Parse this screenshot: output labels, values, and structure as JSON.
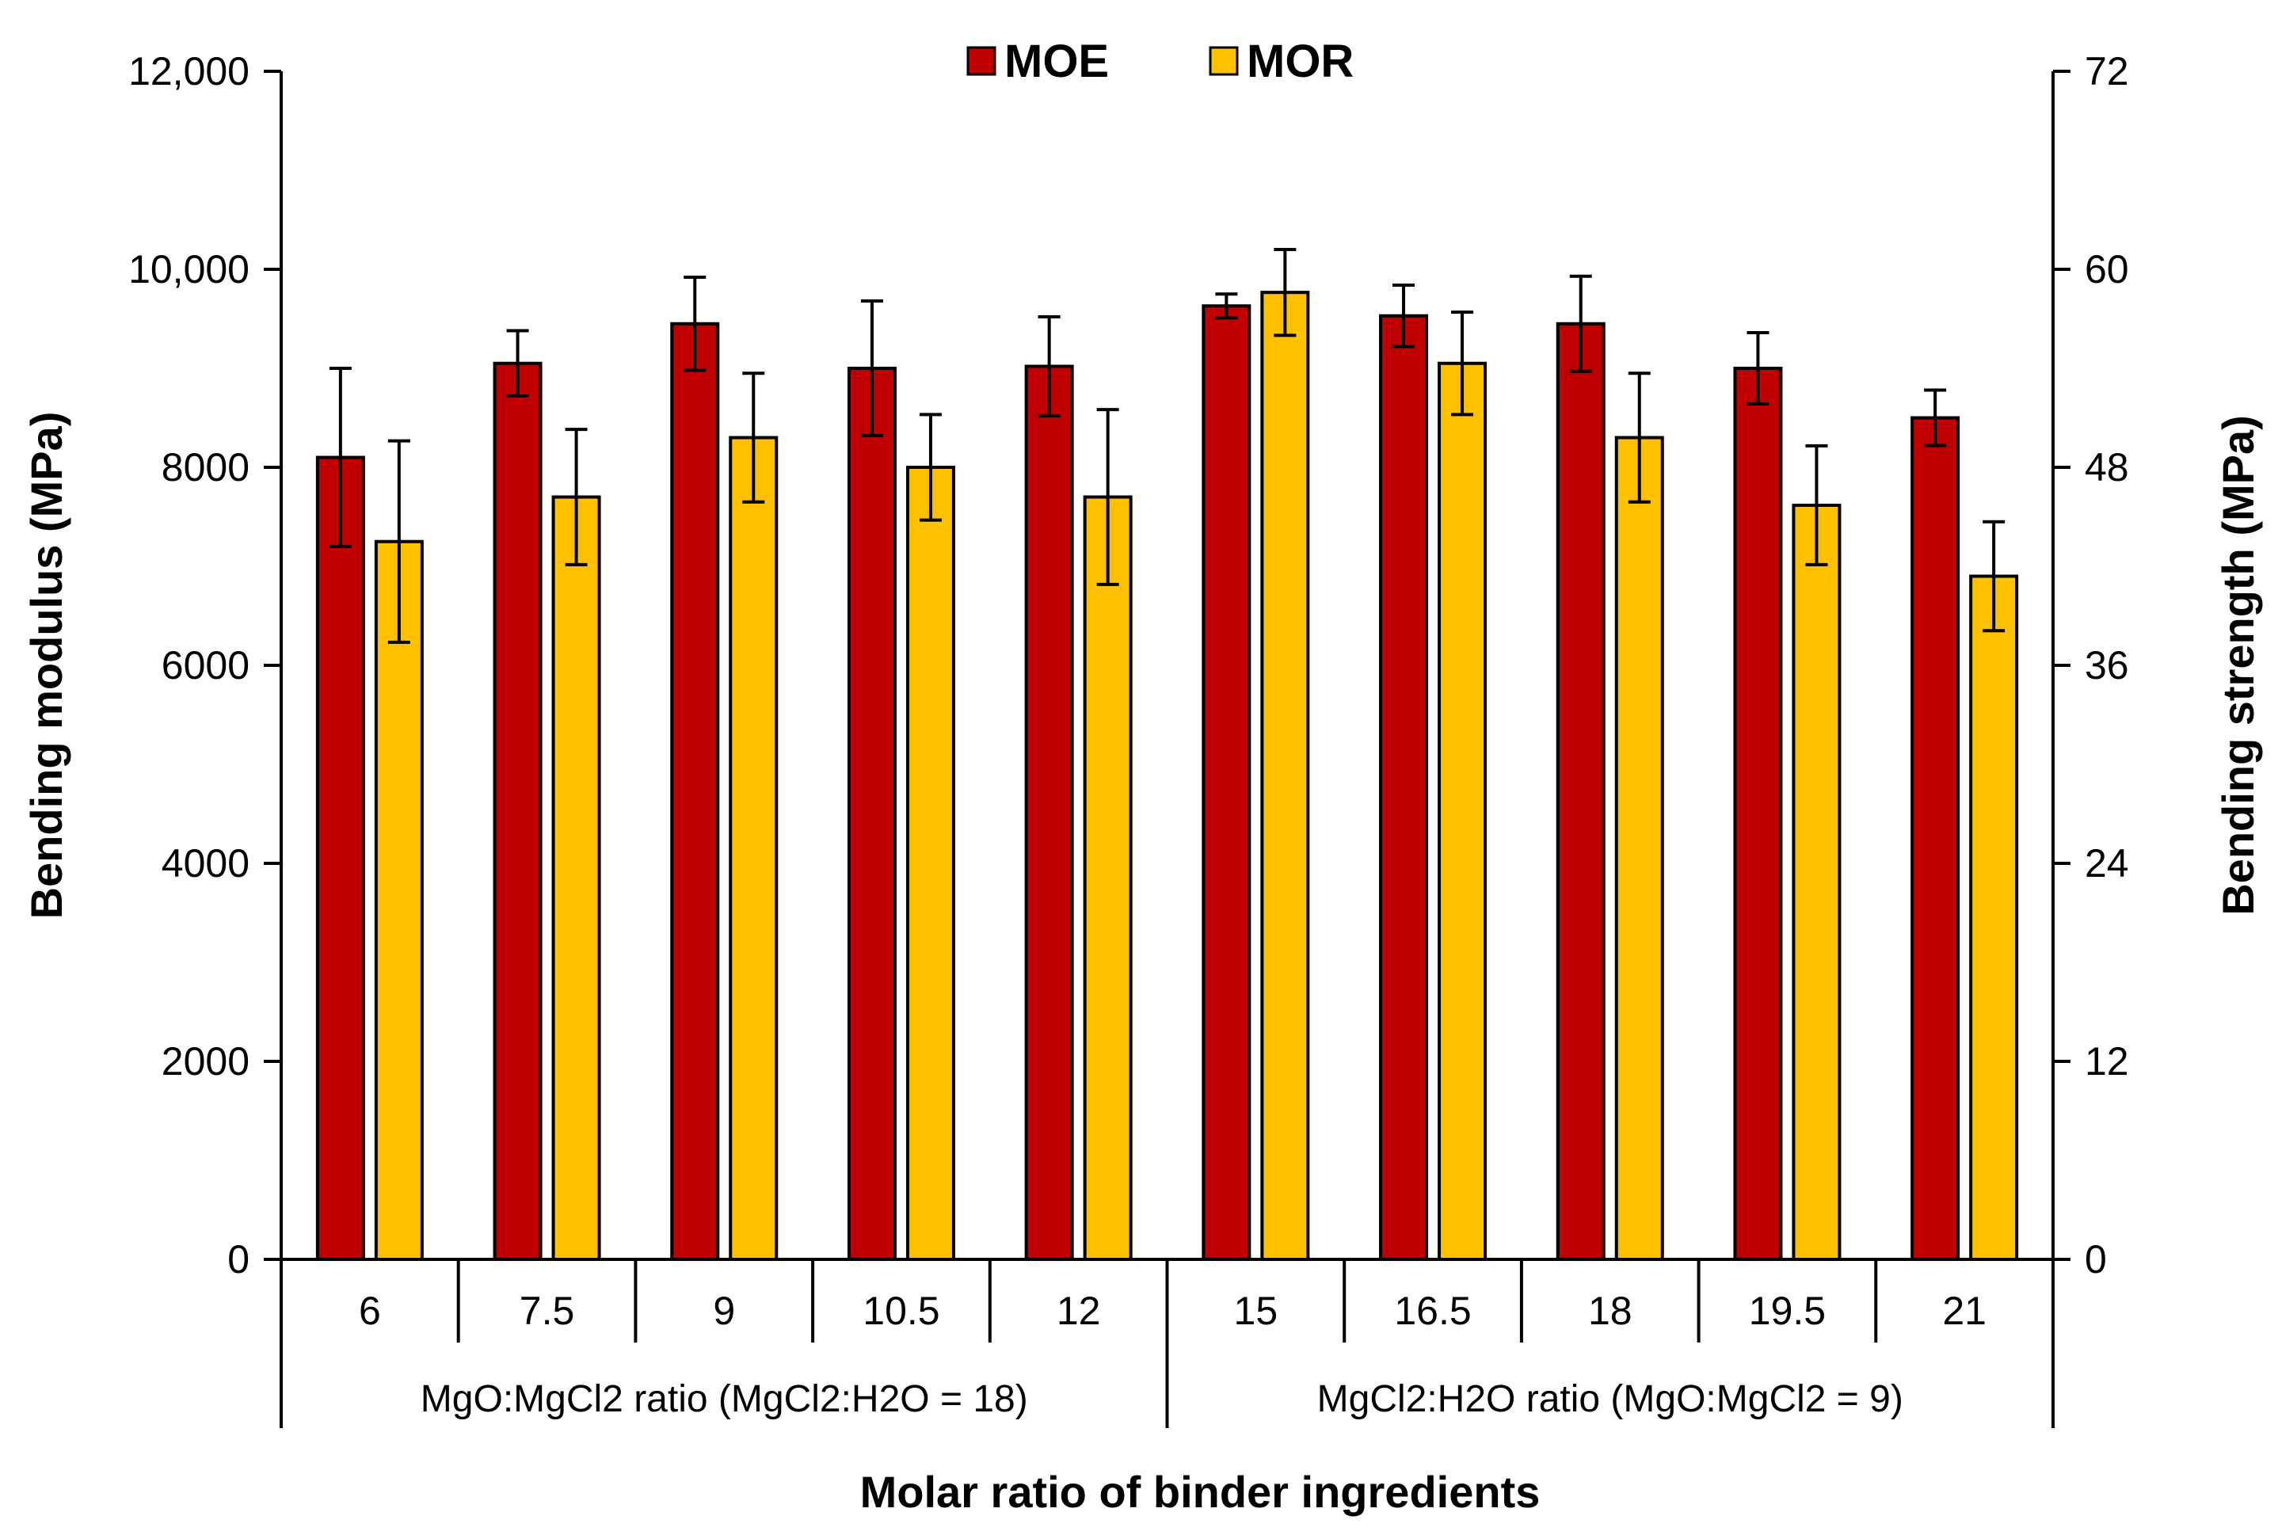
{
  "chart_data": {
    "type": "bar",
    "xlabel": "Molar ratio of binder ingredients",
    "ylabel_left": "Bending modulus (MPa)",
    "ylabel_right": "Bending strength (MPa)",
    "ylim_left": [
      0,
      12000
    ],
    "ylim_right": [
      0,
      72
    ],
    "yticks_left": [
      "0",
      "2000",
      "4000",
      "6000",
      "8000",
      "10,000",
      "12,000"
    ],
    "yticks_right": [
      "0",
      "12",
      "24",
      "36",
      "48",
      "60",
      "72"
    ],
    "categories": [
      "6",
      "7.5",
      "9",
      "10.5",
      "12",
      "15",
      "16.5",
      "18",
      "19.5",
      "21"
    ],
    "groups": [
      {
        "label": "MgO:MgCl2 ratio (MgCl2:H2O = 18)",
        "count": 5
      },
      {
        "label": "MgCl2:H2O ratio (MgO:MgCl2 = 9)",
        "count": 5
      }
    ],
    "series": [
      {
        "name": "MOE",
        "axis": "left",
        "color": "#C00000",
        "values": [
          8100,
          9050,
          9450,
          9000,
          9020,
          9630,
          9530,
          9450,
          9000,
          8500
        ],
        "errors": [
          900,
          330,
          470,
          680,
          500,
          120,
          310,
          480,
          360,
          280
        ]
      },
      {
        "name": "MOR",
        "axis": "right",
        "color": "#FFC000",
        "values": [
          43.5,
          46.2,
          49.8,
          48.0,
          46.2,
          58.6,
          54.3,
          49.8,
          45.7,
          41.4
        ],
        "errors": [
          6.1,
          4.1,
          3.9,
          3.2,
          5.3,
          2.6,
          3.1,
          3.9,
          3.6,
          3.3
        ]
      }
    ],
    "legend": "top-center"
  }
}
